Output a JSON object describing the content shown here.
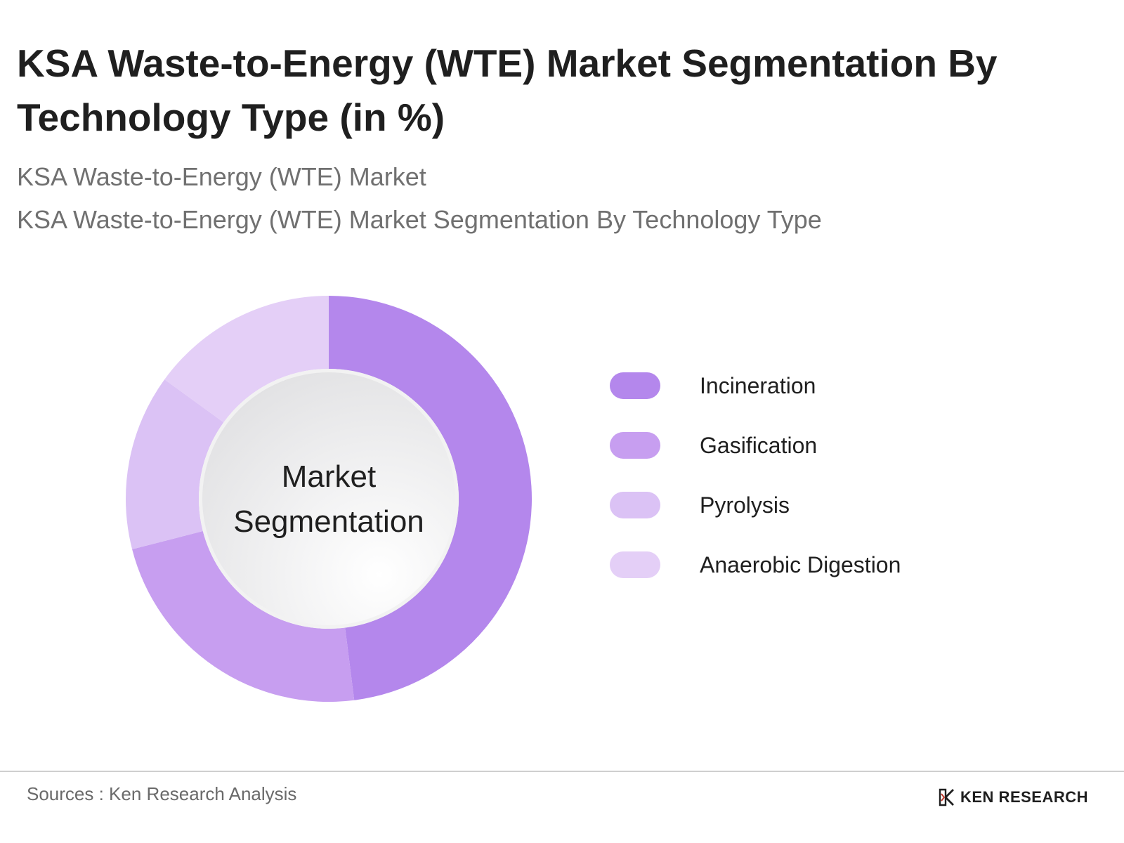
{
  "header": {
    "title": "KSA Waste-to-Energy (WTE) Market Segmentation By Technology Type (in %)",
    "subtitle_1": "KSA Waste-to-Energy (WTE) Market",
    "subtitle_2": "KSA Waste-to-Energy (WTE) Market Segmentation By Technology Type"
  },
  "chart_data": {
    "type": "pie",
    "donut": true,
    "center_label_line1": "Market",
    "center_label_line2": "Segmentation",
    "legend_position": "right",
    "categories": [
      "Incineration",
      "Gasification",
      "Pyrolysis",
      "Anaerobic Digestion"
    ],
    "values": [
      48,
      23,
      14,
      15
    ],
    "colors": [
      "#b487ec",
      "#c79ef0",
      "#dbc2f5",
      "#e4cff7"
    ]
  },
  "footer": {
    "sources": "Sources : Ken Research Analysis",
    "logo_text": "KEN RESEARCH"
  }
}
